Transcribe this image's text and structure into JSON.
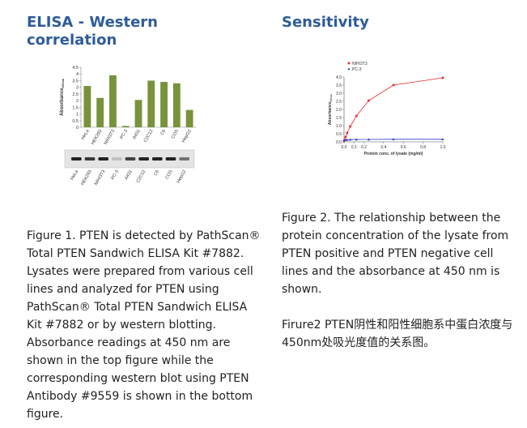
{
  "figure1": {
    "heading": "ELISA - Western correlation",
    "chart": {
      "type": "bar",
      "y_label": "Absorbance",
      "y_label_sub": "450nm",
      "categories": [
        "HeLa",
        "HEK293",
        "NIH/3T3",
        "PC-3",
        "A431",
        "C2C12",
        "C6",
        "COS",
        "HepG2"
      ],
      "values": [
        3.1,
        2.2,
        3.9,
        0.1,
        2.05,
        3.5,
        3.4,
        3.3,
        1.3
      ],
      "color": "#77933c",
      "ylim": [
        0,
        4.5
      ],
      "yticks": [
        0,
        0.5,
        1,
        1.5,
        2,
        2.5,
        3,
        3.5,
        4,
        4.5
      ]
    },
    "blot_lanes": [
      "HeLa",
      "HEK293",
      "NIH/3T3",
      "PC-3",
      "A431",
      "C2C12",
      "C6",
      "COS",
      "HepG2"
    ],
    "caption": "Figure 1. PTEN is detected by PathScan® Total PTEN Sandwich ELISA Kit #7882. Lysates were prepared from various cell lines and analyzed for PTEN using PathScan® Total PTEN Sandwich ELISA Kit #7882 or by western blotting. Absorbance readings at 450 nm are shown in the top figure while the corresponding western blot using PTEN Antibody #9559 is shown in the bottom figure."
  },
  "figure2": {
    "heading": "Sensitivity",
    "chart": {
      "type": "line",
      "x_label": "Protein conc. of lysate (mg/ml)",
      "y_label": "Absorbance",
      "y_label_sub": "450nm",
      "xlim": [
        0,
        1
      ],
      "xticks": [
        {
          "value": 0,
          "label": "0.0"
        },
        0.1,
        0.2,
        0.4,
        0.6,
        0.8,
        {
          "value": 1,
          "label": "1.0"
        }
      ],
      "ylim": [
        0,
        4
      ],
      "yticks": [
        {
          "value": 0,
          "label": "0.0"
        },
        0.5,
        {
          "value": 1,
          "label": "1.0"
        },
        1.5,
        {
          "value": 2,
          "label": "2.0"
        },
        2.5,
        {
          "value": 3,
          "label": "3.0"
        },
        3.5,
        {
          "value": 4,
          "label": "4.0"
        }
      ],
      "legend": "upper left",
      "series": [
        {
          "name": "NIH/3T3",
          "color": "#e8262b",
          "marker": "square",
          "x": [
            0,
            0.016,
            0.031,
            0.0625,
            0.125,
            0.25,
            0.5,
            1
          ],
          "values": [
            0.05,
            0.3,
            0.55,
            0.95,
            1.6,
            2.55,
            3.5,
            3.95
          ]
        },
        {
          "name": "PC-3",
          "color": "#2a3cc8",
          "marker": "triangle",
          "x": [
            0,
            0.016,
            0.031,
            0.0625,
            0.125,
            0.25,
            0.5,
            1
          ],
          "values": [
            0.1,
            0.12,
            0.13,
            0.14,
            0.15,
            0.15,
            0.16,
            0.16
          ]
        }
      ]
    },
    "caption": "Figure 2. The relationship between the protein concentration of the lysate from PTEN positive and PTEN negative cell lines and the absorbance at 450 nm is shown.",
    "caption_cn": "Firure2 PTEN阴性和阳性细胞系中蛋白浓度与450nm处吸光度值的关系图。"
  }
}
